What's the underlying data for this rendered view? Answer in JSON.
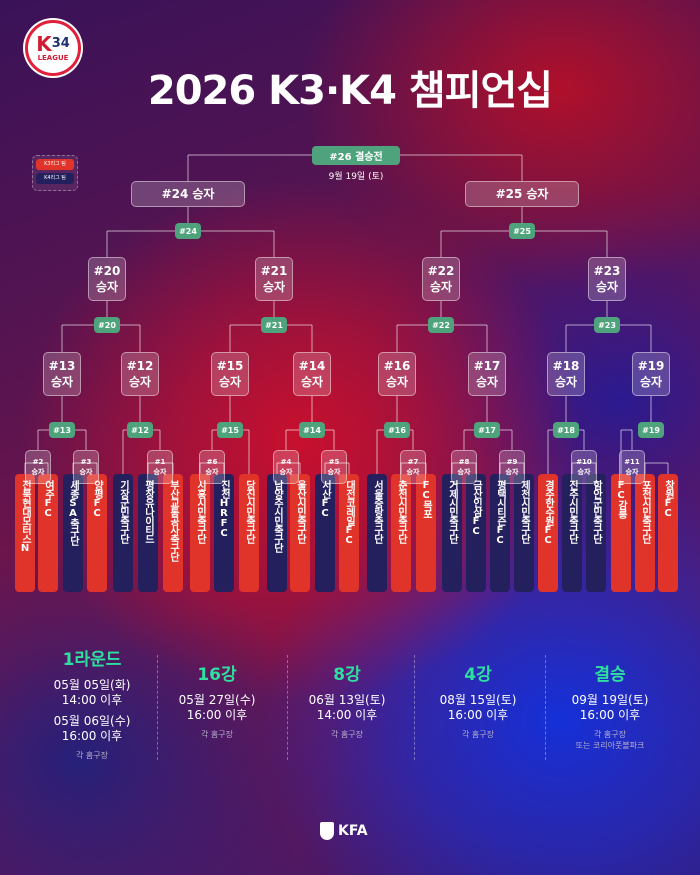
{
  "logo_text": "K3 K4 LEAGUE",
  "title": "2026 K3·K4 챔피언십",
  "legend": {
    "k3": "K3리그 팀",
    "k4": "K4리그 팀",
    "k3_color": "#e0342a",
    "k4_color": "#24205e"
  },
  "final": {
    "label": "#26 결승전",
    "date": "9월 19일 (토)"
  },
  "teams": [
    {
      "name": "전북현대모터스N",
      "league": "K3"
    },
    {
      "name": "여주FC",
      "league": "K3"
    },
    {
      "name": "세종SA축구단",
      "league": "K4"
    },
    {
      "name": "양평FC",
      "league": "K3"
    },
    {
      "name": "기장군민축구단",
      "league": "K4"
    },
    {
      "name": "평창유나이티드",
      "league": "K4"
    },
    {
      "name": "부산교통공사축구단",
      "league": "K3"
    },
    {
      "name": "시흥시민축구단",
      "league": "K3"
    },
    {
      "name": "진천HRFC",
      "league": "K4"
    },
    {
      "name": "당진시민축구단",
      "league": "K3"
    },
    {
      "name": "남양주시민축구단",
      "league": "K4"
    },
    {
      "name": "울산시민축구단",
      "league": "K3"
    },
    {
      "name": "서산FC",
      "league": "K4"
    },
    {
      "name": "대전코레일FC",
      "league": "K3"
    },
    {
      "name": "서울중랑축구단",
      "league": "K4"
    },
    {
      "name": "춘천시민축구단",
      "league": "K3"
    },
    {
      "name": "FC목포",
      "league": "K3"
    },
    {
      "name": "거제시민축구단",
      "league": "K4"
    },
    {
      "name": "금산인삼FC",
      "league": "K4"
    },
    {
      "name": "평택시티즌FC",
      "league": "K4"
    },
    {
      "name": "제천시민축구단",
      "league": "K4"
    },
    {
      "name": "경주한수원FC",
      "league": "K3"
    },
    {
      "name": "진주시민축구단",
      "league": "K4"
    },
    {
      "name": "함안군민축구단",
      "league": "K4"
    },
    {
      "name": "FC강릉",
      "league": "K3"
    },
    {
      "name": "포천시민축구단",
      "league": "K3"
    },
    {
      "name": "창원FC",
      "league": "K3"
    }
  ],
  "winner_suffix": "승자",
  "round1_winners": [
    "#2",
    "#3",
    "#1",
    "#6",
    "#4",
    "#5",
    "#7",
    "#8",
    "#9",
    "#10",
    "#11"
  ],
  "round2_matches": [
    "#13",
    "#12",
    "#15",
    "#14",
    "#16",
    "#17",
    "#18",
    "#19"
  ],
  "round3_matches": [
    "#20",
    "#21",
    "#22",
    "#23"
  ],
  "round4_matches": [
    "#24",
    "#25"
  ],
  "schedule": [
    {
      "round": "1라운드",
      "dates": [
        "05월 05일(화)",
        "14:00 이후",
        "05월 06일(수)",
        "16:00 이후"
      ],
      "venue": [
        "각 홈구장"
      ]
    },
    {
      "round": "16강",
      "dates": [
        "05월 27일(수)",
        "16:00 이후"
      ],
      "venue": [
        "각 홈구장"
      ]
    },
    {
      "round": "8강",
      "dates": [
        "06월 13일(토)",
        "14:00 이후"
      ],
      "venue": [
        "각 홈구장"
      ]
    },
    {
      "round": "4강",
      "dates": [
        "08월 15일(토)",
        "16:00 이후"
      ],
      "venue": [
        "각 홈구장"
      ]
    },
    {
      "round": "결승",
      "dates": [
        "09월 19일(토)",
        "16:00 이후"
      ],
      "venue": [
        "각 홈구장",
        "또는 코리아풋볼파크"
      ]
    }
  ],
  "footer": "KFA"
}
